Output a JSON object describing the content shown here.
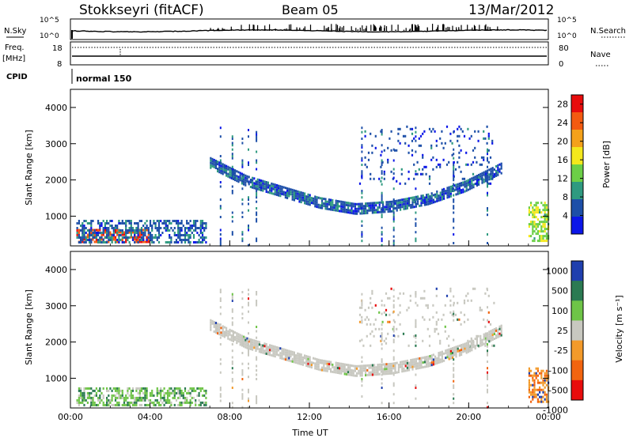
{
  "header": {
    "station": "Stokkseyri (fitACF)",
    "beam": "Beam 05",
    "date": "13/Mar/2012"
  },
  "summary_panels": {
    "nsky_label": "N.Sky",
    "nsky_ticks": [
      "10^5",
      "10^0"
    ],
    "nsearch_label": "N.Search",
    "nsearch_ticks": [
      "10^5",
      "10^0"
    ],
    "freq_label": "Freq.",
    "freq_unit": "[MHz]",
    "freq_ticks": [
      "18",
      "8"
    ],
    "nave_label": "Nave",
    "nave_ticks": [
      "80",
      "0"
    ],
    "cpid_label": "CPID",
    "cpid_value": "normal 150"
  },
  "chart_data": [
    {
      "type": "heatmap",
      "name": "power",
      "ylabel": "Slant Range [km]",
      "xlabel": "Time UT",
      "x_ticks": [
        "00:00",
        "04:00",
        "08:00",
        "12:00",
        "16:00",
        "20:00",
        "00:00"
      ],
      "x_range_hours": [
        0,
        24
      ],
      "ylim": [
        180,
        4500
      ],
      "y_ticks": [
        1000,
        2000,
        3000,
        4000
      ],
      "colorbar": {
        "label": "Power [dB]",
        "ticks": [
          4,
          8,
          12,
          16,
          20,
          24,
          28
        ],
        "range": [
          0,
          30
        ],
        "colors": [
          "#0b16e8",
          "#1d4fa8",
          "#2f9a80",
          "#6ccf47",
          "#f4e81c",
          "#f4a11a",
          "#f35a10",
          "#e80c0c"
        ]
      },
      "features": [
        {
          "kind": "band",
          "start_hour": 7.0,
          "end_hour": 21.6,
          "range_km": [
            2450,
            1950,
            1650,
            1350,
            1180,
            1250,
            1450,
            1800,
            2300
          ],
          "level_db": 6
        },
        {
          "kind": "patch",
          "start_hour": 0.3,
          "end_hour": 3.9,
          "range_km": [
            300,
            650
          ],
          "level_db": 26
        },
        {
          "kind": "patch",
          "start_hour": 0.3,
          "end_hour": 6.8,
          "range_km": [
            250,
            900
          ],
          "level_db": 6
        },
        {
          "kind": "scatter",
          "start_hour": 14.5,
          "end_hour": 21.3,
          "range_km": [
            1900,
            3500
          ],
          "level_db": 5
        },
        {
          "kind": "patch",
          "start_hour": 23.0,
          "end_hour": 24.0,
          "range_km": [
            350,
            1400
          ],
          "level_db": 14
        }
      ]
    },
    {
      "type": "heatmap",
      "name": "velocity",
      "ylabel": "Slant Range [km]",
      "xlabel": "Time UT",
      "x_ticks": [
        "00:00",
        "04:00",
        "08:00",
        "12:00",
        "16:00",
        "20:00",
        "00:00"
      ],
      "x_range_hours": [
        0,
        24
      ],
      "ylim": [
        180,
        4500
      ],
      "y_ticks": [
        1000,
        2000,
        3000,
        4000
      ],
      "colorbar": {
        "label": "Velocity [m s⁻¹]",
        "ticks": [
          1000,
          500,
          100,
          25,
          -25,
          -100,
          -500,
          -1000
        ],
        "colors": [
          "#1f3fae",
          "#2b7a52",
          "#6ec447",
          "#c8c8c0",
          "#f39a2a",
          "#f2640f",
          "#e80c0c"
        ]
      },
      "features": [
        {
          "kind": "band",
          "start_hour": 7.0,
          "end_hour": 21.6,
          "range_km": [
            2450,
            1950,
            1650,
            1350,
            1180,
            1250,
            1450,
            1800,
            2300
          ],
          "velocity": 0
        },
        {
          "kind": "patch",
          "start_hour": 0.3,
          "end_hour": 6.8,
          "range_km": [
            250,
            750
          ],
          "velocity": 200
        },
        {
          "kind": "scatter",
          "start_hour": 14.5,
          "end_hour": 21.3,
          "range_km": [
            1900,
            3500
          ],
          "velocity": 0
        },
        {
          "kind": "patch",
          "start_hour": 23.0,
          "end_hour": 24.0,
          "range_km": [
            350,
            1300
          ],
          "velocity": -300
        }
      ]
    }
  ]
}
